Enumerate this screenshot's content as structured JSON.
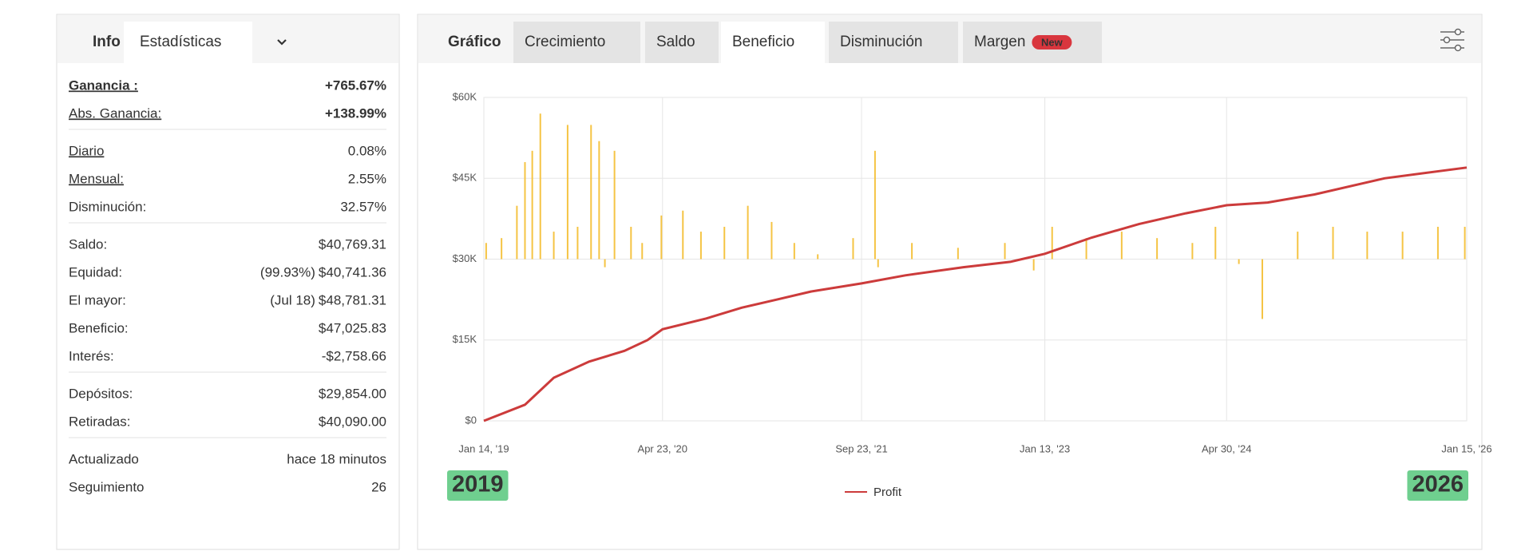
{
  "sidebar": {
    "tabs": [
      "Info",
      "Estadísticas"
    ],
    "groups": [
      [
        {
          "label": "Ganancia :",
          "value": "+765.67%",
          "color": "#2e9e44"
        },
        {
          "label": "Abs. Ganancia:",
          "value": "+138.99%",
          "color": "#2e9e44"
        }
      ],
      [
        {
          "label": "Diario",
          "value": "0.08%"
        },
        {
          "label": "Mensual:",
          "value": "2.55%"
        },
        {
          "label": "Disminución:",
          "value": "32.57%"
        }
      ],
      [
        {
          "label": "Saldo:",
          "value": "$40,769.31"
        },
        {
          "label": "Equidad:",
          "note": "(99.93%)",
          "value": "$40,741.36"
        },
        {
          "label": "El mayor:",
          "note": "(Jul 18)",
          "value": "$48,781.31"
        },
        {
          "label": "Beneficio:",
          "value": "$47,025.83",
          "color": "#2e9e44"
        },
        {
          "label": "Interés:",
          "value": "-$2,758.66"
        }
      ],
      [
        {
          "label": "Depósitos:",
          "value": "$29,854.00"
        },
        {
          "label": "Retiradas:",
          "value": "$40,090.00"
        }
      ],
      [
        {
          "label": "Actualizado",
          "value": "hace 18 minutos"
        },
        {
          "label": "Seguimiento",
          "value": "26"
        }
      ]
    ]
  },
  "chart_tabs": {
    "items": [
      "Gráfico",
      "Crecimiento",
      "Saldo",
      "Beneficio",
      "Disminución",
      "Margen"
    ],
    "active": 3,
    "badge": "New"
  },
  "chart_data": {
    "type": "line",
    "xlim": [
      "2019-01-14",
      "2026-01-15"
    ],
    "xticks": [
      {
        "value": "2019-01-14",
        "label": "Jan 14, '19"
      },
      {
        "value": "2020-04-23",
        "label": "Apr 23, '20"
      },
      {
        "value": "2021-09-23",
        "label": "Sep 23, '21"
      },
      {
        "value": "2023-01-13",
        "label": "Jan 13, '23"
      },
      {
        "value": "2024-04-30",
        "label": "Apr 30, '24"
      },
      {
        "value": "2026-01-15",
        "label": "Jan 15, '26"
      }
    ],
    "ylim": [
      0,
      60000
    ],
    "yticks": [
      {
        "value": 0,
        "label": "$0"
      },
      {
        "value": 15000,
        "label": "$15K"
      },
      {
        "value": 30000,
        "label": "$30K"
      },
      {
        "value": 45000,
        "label": "$45K"
      },
      {
        "value": 60000,
        "label": "$60K"
      }
    ],
    "y2lim": [
      -100,
      100
    ],
    "grid": true,
    "annotations": [
      "2019",
      "2026"
    ],
    "series": [
      {
        "name": "Profit",
        "color": "#cc3b3b",
        "x": [
          "2019-01-14",
          "2019-05-01",
          "2019-07-15",
          "2019-10-15",
          "2020-01-15",
          "2020-03-15",
          "2020-04-23",
          "2020-08-15",
          "2020-11-15",
          "2021-02-15",
          "2021-05-15",
          "2021-09-23",
          "2022-01-15",
          "2022-06-15",
          "2022-10-15",
          "2023-01-13",
          "2023-05-15",
          "2023-09-15",
          "2024-01-15",
          "2024-04-30",
          "2024-08-15",
          "2024-12-15",
          "2025-06-15",
          "2026-01-15"
        ],
        "values": [
          0,
          3000,
          8000,
          11000,
          13000,
          15000,
          17000,
          19000,
          21000,
          22500,
          24000,
          25500,
          27000,
          28500,
          29500,
          31000,
          34000,
          36500,
          38500,
          40000,
          40500,
          42000,
          45000,
          47000
        ]
      },
      {
        "type": "bar",
        "axis": "y2",
        "color": "#f5c444",
        "x": [
          "2019-01-20",
          "2019-03-01",
          "2019-04-10",
          "2019-05-01",
          "2019-05-20",
          "2019-06-10",
          "2019-07-15",
          "2019-08-20",
          "2019-09-15",
          "2019-10-20",
          "2019-11-10",
          "2019-11-25",
          "2019-12-20",
          "2020-02-01",
          "2020-03-01",
          "2020-04-20",
          "2020-06-15",
          "2020-08-01",
          "2020-10-01",
          "2020-12-01",
          "2021-02-01",
          "2021-04-01",
          "2021-06-01",
          "2021-09-01",
          "2021-10-28",
          "2021-11-05",
          "2022-02-01",
          "2022-06-01",
          "2022-10-01",
          "2022-12-15",
          "2023-02-01",
          "2023-05-01",
          "2023-08-01",
          "2023-11-01",
          "2024-02-01",
          "2024-04-01",
          "2024-06-01",
          "2024-08-01",
          "2024-11-01",
          "2025-02-01",
          "2025-05-01",
          "2025-08-01",
          "2025-11-01",
          "2026-01-10"
        ],
        "values": [
          10,
          13,
          33,
          60,
          67,
          90,
          17,
          83,
          20,
          83,
          73,
          -5,
          67,
          20,
          10,
          27,
          30,
          17,
          20,
          33,
          23,
          10,
          3,
          13,
          67,
          -5,
          10,
          7,
          10,
          -7,
          20,
          13,
          17,
          13,
          10,
          20,
          -3,
          -37,
          17,
          20,
          17,
          17,
          20,
          20
        ]
      }
    ]
  }
}
